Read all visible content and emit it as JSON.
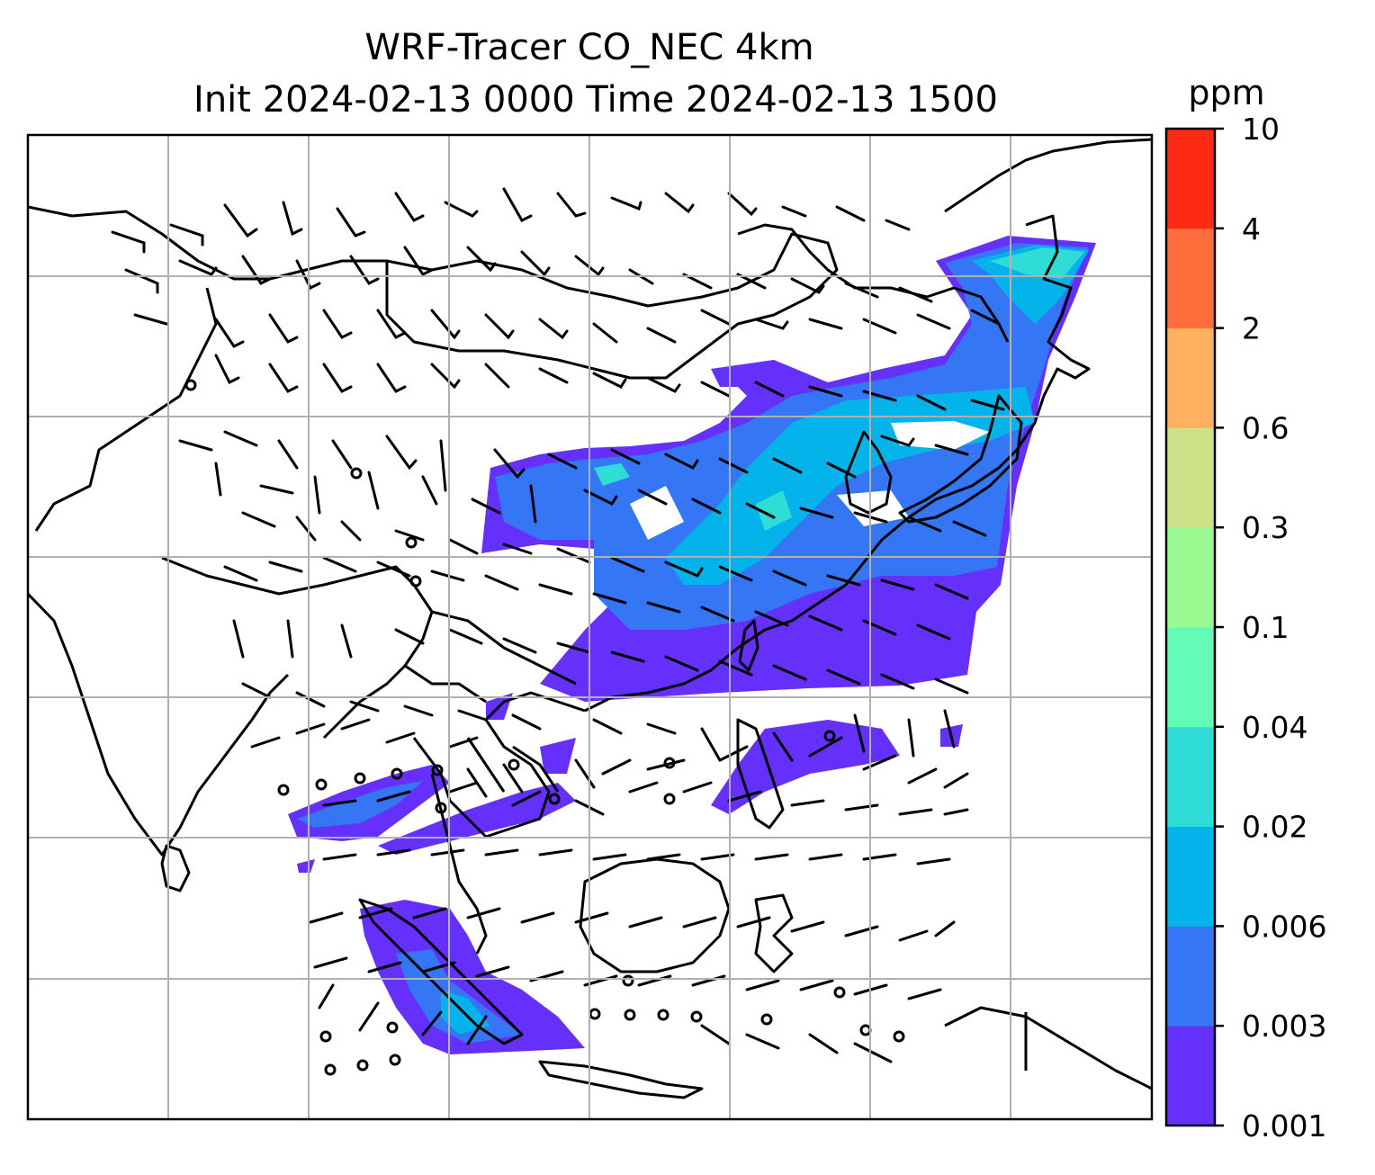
{
  "figure": {
    "title_line1": "WRF-Tracer CO_NEC 4km",
    "title_line2": "Init 2024-02-13 0000 Time 2024-02-13 1500"
  },
  "colorbar": {
    "unit": "ppm",
    "levels": [
      {
        "label": "0.001",
        "color": "#6430fa"
      },
      {
        "label": "0.003",
        "color": "#3476f3"
      },
      {
        "label": "0.006",
        "color": "#04b3ea"
      },
      {
        "label": "0.02",
        "color": "#2fdcd6"
      },
      {
        "label": "0.04",
        "color": "#64fab8"
      },
      {
        "label": "0.1",
        "color": "#9afa92"
      },
      {
        "label": "0.3",
        "color": "#cde288"
      },
      {
        "label": "0.6",
        "color": "#ffb160"
      },
      {
        "label": "2",
        "color": "#ff6d3c"
      },
      {
        "label": "4",
        "color": "#ff2a14"
      },
      {
        "label": "10",
        "color": ""
      }
    ]
  },
  "map": {
    "gridlines": true,
    "features": [
      "coastlines",
      "country-borders",
      "wind-barbs",
      "tracer-concentration-fill"
    ],
    "plume_colors": {
      "low": "#6430fa",
      "mid": "#3476f3",
      "high": "#04b3ea",
      "peak": "#2fdcd6"
    }
  }
}
